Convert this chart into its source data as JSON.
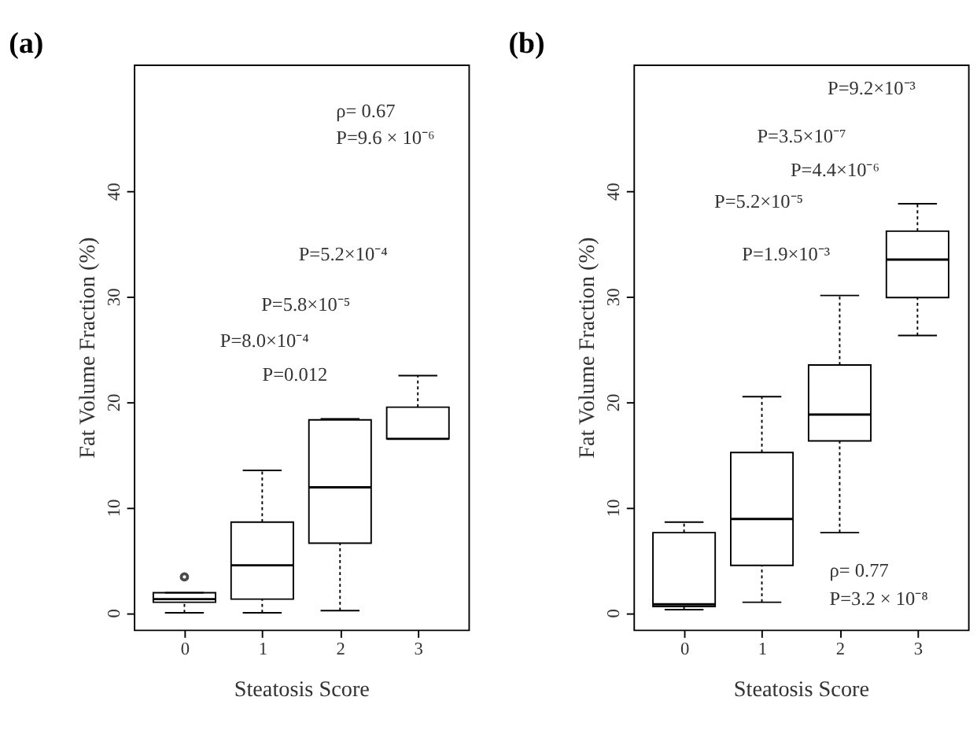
{
  "chart_data": [
    {
      "type": "box",
      "title": "(a)",
      "xlabel": "Steatosis Score",
      "ylabel": "Fat Volume Fraction (%)",
      "categories": [
        "0",
        "1",
        "2",
        "3"
      ],
      "boxes": [
        {
          "low": 0,
          "q1": 1.0,
          "median": 1.3,
          "q3": 1.9,
          "high": 1.9,
          "outliers": [
            3.4
          ]
        },
        {
          "low": 0,
          "q1": 1.3,
          "median": 4.5,
          "q3": 8.6,
          "high": 13.5
        },
        {
          "low": 0.2,
          "q1": 6.6,
          "median": 11.9,
          "q3": 18.3,
          "high": 18.4
        },
        {
          "low": 16.5,
          "q1": 16.5,
          "median": 16.5,
          "q3": 19.5,
          "high": 22.5
        }
      ],
      "ylim": [
        -1.6,
        52
      ],
      "yticks": [
        0,
        10,
        20,
        30,
        40
      ],
      "grid": false,
      "annotations": [
        "ρ= 0.67",
        "P=9.6 × 10⁻⁶",
        "P=5.2×10⁻⁴",
        "P=5.8×10⁻⁵",
        "P=8.0×10⁻⁴",
        "P=0.012"
      ]
    },
    {
      "type": "box",
      "title": "(b)",
      "xlabel": "Steatosis Score",
      "ylabel": "Fat Volume Fraction (%)",
      "categories": [
        "0",
        "1",
        "2",
        "3"
      ],
      "boxes": [
        {
          "low": 0.3,
          "q1": 0.6,
          "median": 0.8,
          "q3": 7.6,
          "high": 8.6
        },
        {
          "low": 1.0,
          "q1": 4.5,
          "median": 8.9,
          "q3": 15.2,
          "high": 20.5
        },
        {
          "low": 7.6,
          "q1": 16.3,
          "median": 18.8,
          "q3": 23.5,
          "high": 30.1
        },
        {
          "low": 26.3,
          "q1": 29.9,
          "median": 33.5,
          "q3": 36.2,
          "high": 38.8
        }
      ],
      "ylim": [
        -1.6,
        52
      ],
      "yticks": [
        0,
        10,
        20,
        30,
        40
      ],
      "grid": false,
      "annotations": [
        "P=9.2×10⁻³",
        "P=3.5×10⁻⁷",
        "P=4.4×10⁻⁶",
        "P=5.2×10⁻⁵",
        "P=1.9×10⁻³",
        "ρ= 0.77",
        "P=3.2 × 10⁻⁸"
      ]
    }
  ]
}
